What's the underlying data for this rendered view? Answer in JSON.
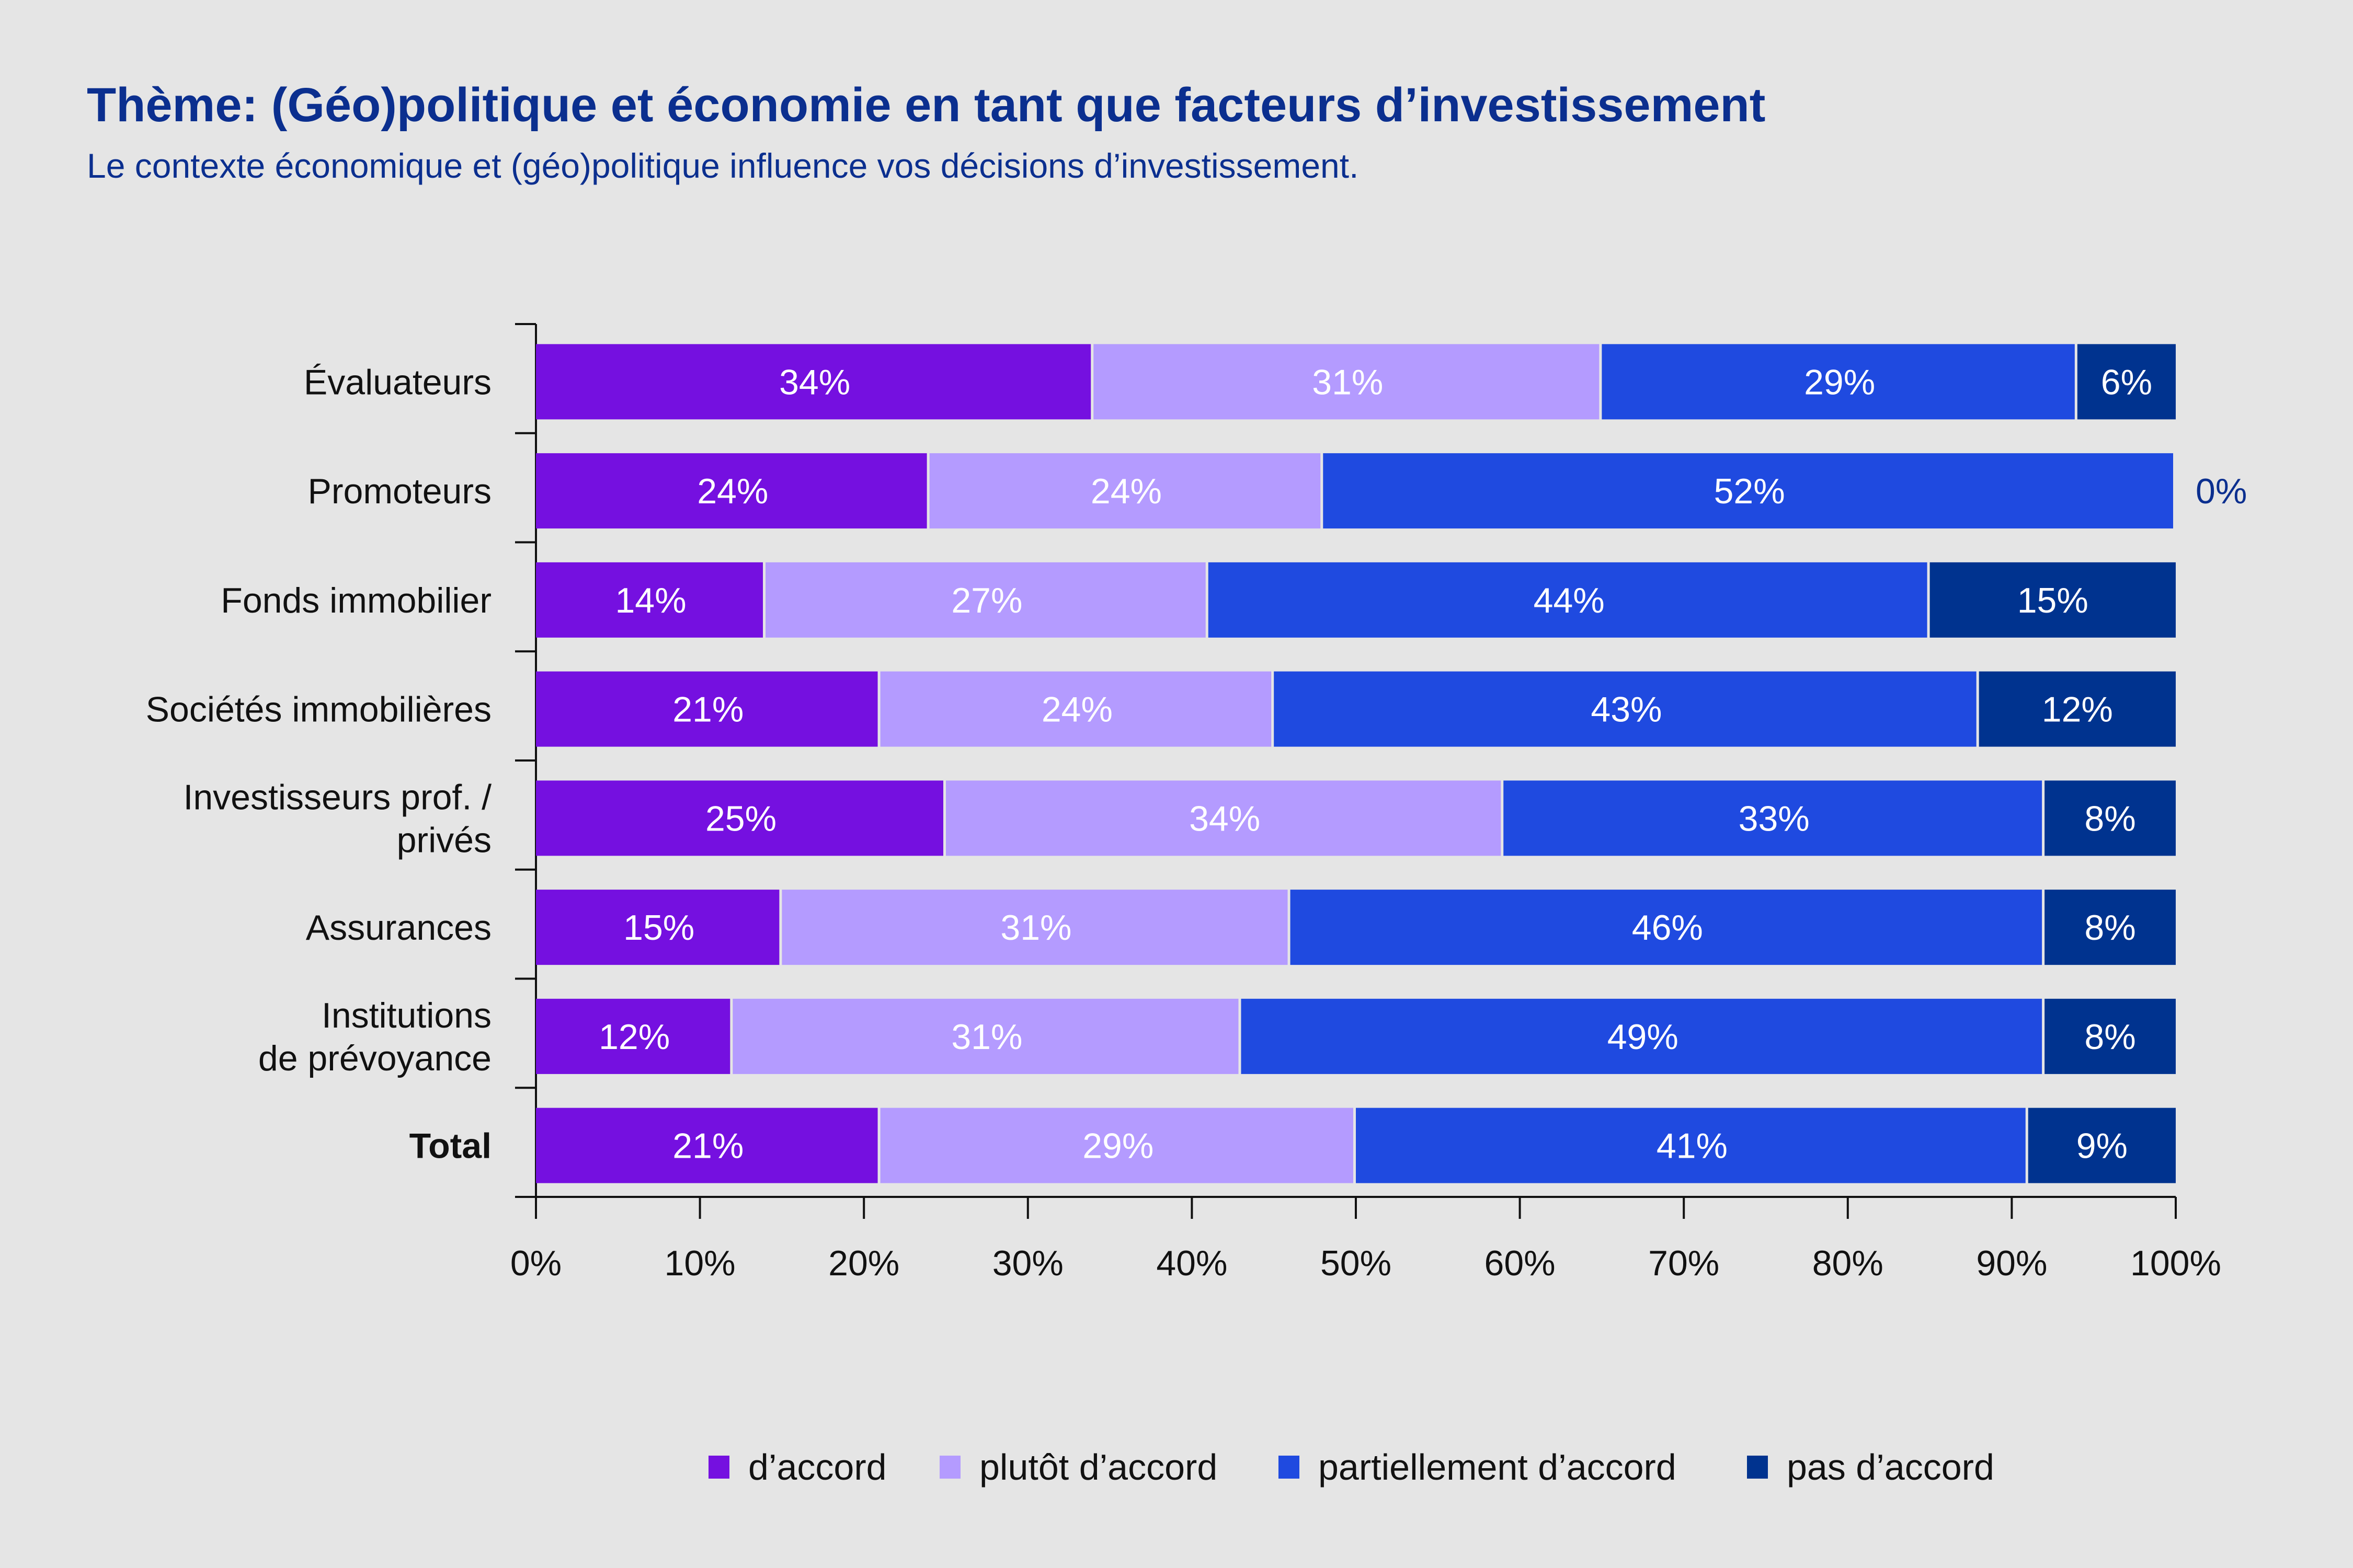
{
  "chart_data": {
    "type": "bar",
    "orientation": "horizontal",
    "stacked": true,
    "title": "Thème: (Géo)politique et économie en tant que facteurs d’investissement",
    "subtitle": "Le contexte économique et (géo)politique influence vos décisions d’investissement.",
    "categories": [
      [
        "Évaluateurs"
      ],
      [
        "Promoteurs"
      ],
      [
        "Fonds immobilier"
      ],
      [
        "Sociétés immobilières"
      ],
      [
        "Investisseurs prof. /",
        "privés"
      ],
      [
        "Assurances"
      ],
      [
        "Institutions",
        "de prévoyance"
      ],
      [
        "Total"
      ]
    ],
    "bold_categories": [
      "Total"
    ],
    "series": [
      {
        "name": "d’accord",
        "color": "#7510e0",
        "values": [
          34,
          24,
          14,
          21,
          25,
          15,
          12,
          21
        ]
      },
      {
        "name": "plutôt d’accord",
        "color": "#b49bff",
        "values": [
          31,
          24,
          27,
          24,
          34,
          31,
          31,
          29
        ]
      },
      {
        "name": "partiellement d’accord",
        "color": "#1f4ae0",
        "values": [
          29,
          52,
          44,
          43,
          33,
          46,
          49,
          41
        ]
      },
      {
        "name": "pas d’accord",
        "color": "#00338f",
        "values": [
          6,
          0,
          15,
          12,
          8,
          8,
          8,
          9
        ]
      }
    ],
    "value_suffix": "%",
    "xlim": [
      0,
      100
    ],
    "xticks": [
      "0%",
      "10%",
      "20%",
      "30%",
      "40%",
      "50%",
      "60%",
      "70%",
      "80%",
      "90%",
      "100%"
    ],
    "grid": false,
    "legend_position": "bottom"
  }
}
